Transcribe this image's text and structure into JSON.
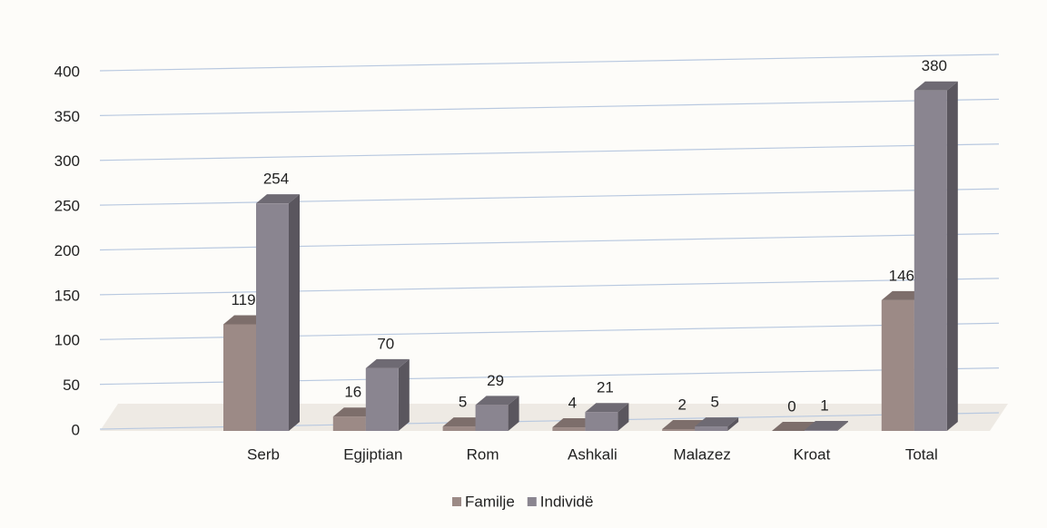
{
  "chart_data": {
    "type": "bar",
    "categories": [
      "Serb",
      "Egjiptian",
      "Rom",
      "Ashkali",
      "Malazez",
      "Kroat",
      "Total"
    ],
    "series": [
      {
        "name": "Familje",
        "color": "#9c8a86",
        "values": [
          119,
          16,
          5,
          4,
          2,
          0,
          146
        ]
      },
      {
        "name": "Individë",
        "color": "#8a8590",
        "values": [
          254,
          70,
          29,
          21,
          5,
          1,
          380
        ]
      }
    ],
    "ylim": [
      0,
      400
    ],
    "yticks": [
      0,
      50,
      100,
      150,
      200,
      250,
      300,
      350,
      400
    ],
    "grid": true,
    "legend": "bottom"
  }
}
